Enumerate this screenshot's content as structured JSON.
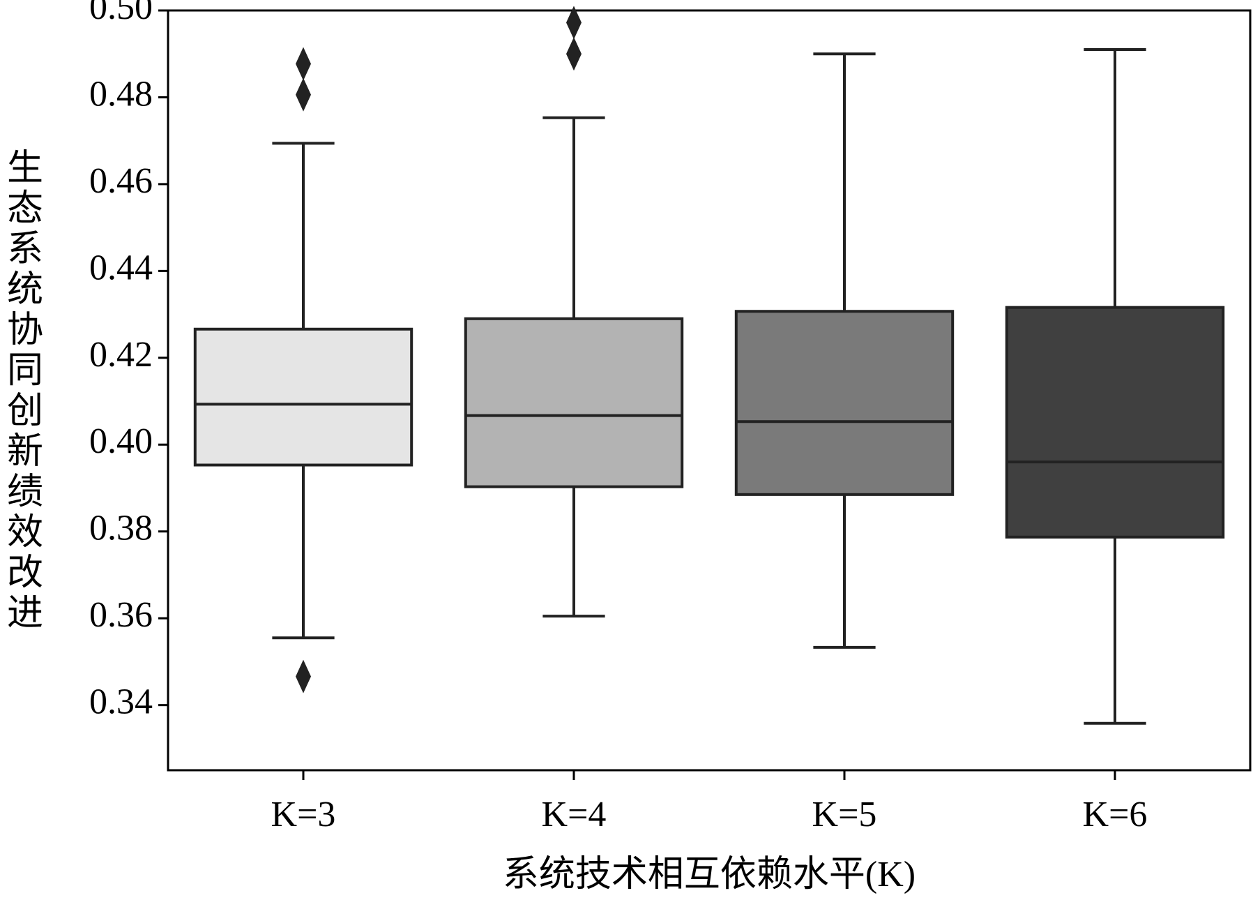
{
  "chart_data": {
    "type": "box",
    "x_label": "系统技术相互依赖水平(K)",
    "y_label": "生态系统协同创新绩效改进",
    "categories": [
      "K=3",
      "K=4",
      "K=5",
      "K=6"
    ],
    "boxes": [
      {
        "whislo": 0.3555,
        "q1": 0.3953,
        "median": 0.4093,
        "q3": 0.4266,
        "whishi": 0.4694,
        "fliers": [
          0.4877,
          0.4806,
          0.3466
        ],
        "color": "#e5e5e5"
      },
      {
        "whislo": 0.3605,
        "q1": 0.3903,
        "median": 0.4067,
        "q3": 0.429,
        "whishi": 0.4753,
        "fliers": [
          0.4972,
          0.49
        ],
        "color": "#b3b3b3"
      },
      {
        "whislo": 0.3533,
        "q1": 0.3885,
        "median": 0.4053,
        "q3": 0.4307,
        "whishi": 0.49,
        "fliers": [],
        "color": "#7a7a7a"
      },
      {
        "whislo": 0.3358,
        "q1": 0.3787,
        "median": 0.396,
        "q3": 0.4316,
        "whishi": 0.491,
        "fliers": [],
        "color": "#404040"
      }
    ],
    "ylim": [
      0.325,
      0.5
    ],
    "yticks": [
      {
        "value": 0.34,
        "label": "0.34"
      },
      {
        "value": 0.36,
        "label": "0.36"
      },
      {
        "value": 0.38,
        "label": "0.38"
      },
      {
        "value": 0.4,
        "label": "0.40"
      },
      {
        "value": 0.42,
        "label": "0.42"
      },
      {
        "value": 0.44,
        "label": "0.44"
      },
      {
        "value": 0.46,
        "label": "0.46"
      },
      {
        "value": 0.48,
        "label": "0.48"
      },
      {
        "value": 0.5,
        "label": "0.50"
      }
    ],
    "grid": false
  }
}
